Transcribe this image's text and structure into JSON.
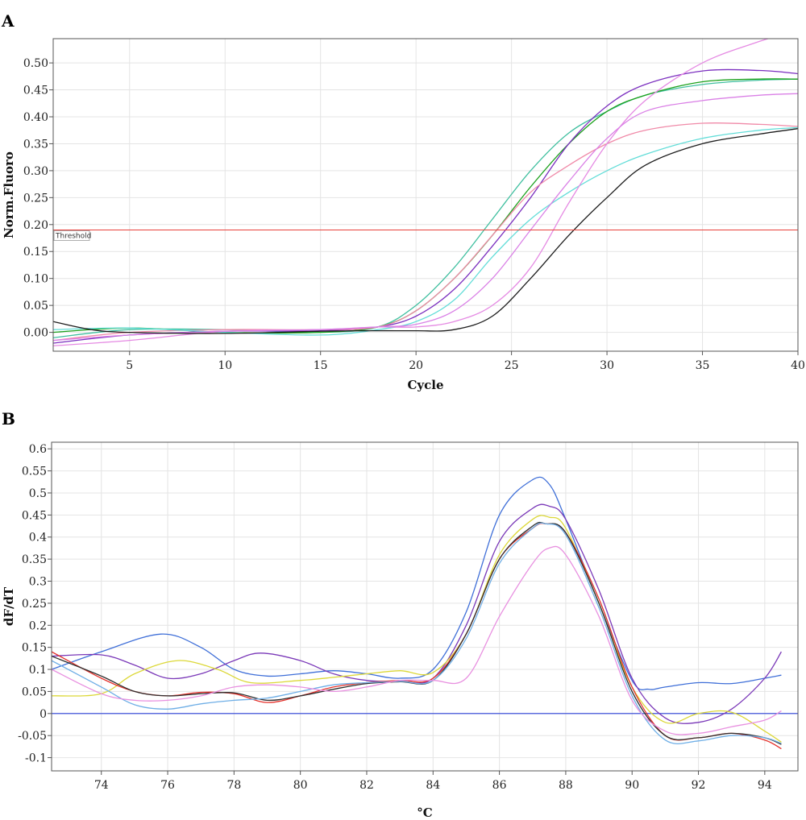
{
  "chart_data": [
    {
      "panel": "A",
      "type": "line",
      "xlabel": "Cycle",
      "ylabel": "Norm.Fluoro",
      "xlim": [
        1,
        40
      ],
      "ylim": [
        -0.035,
        0.545
      ],
      "xticks": [
        5,
        10,
        15,
        20,
        25,
        30,
        35,
        40
      ],
      "yticks": [
        0.0,
        0.05,
        0.1,
        0.15,
        0.2,
        0.25,
        0.3,
        0.35,
        0.4,
        0.45,
        0.5
      ],
      "ytick_labels": [
        "0.00",
        "0.05",
        "0.10",
        "0.15",
        "0.20",
        "0.25",
        "0.30",
        "0.35",
        "0.40",
        "0.45",
        "0.50"
      ],
      "grid": true,
      "threshold": {
        "label": "Threshold",
        "y": 0.19,
        "color": "#e8403a"
      },
      "series": [
        {
          "color": "#3fbf9f",
          "x": [
            1,
            5,
            10,
            15,
            18,
            20,
            22,
            24,
            26,
            28,
            30,
            32,
            35,
            38,
            40
          ],
          "values": [
            -0.01,
            0.005,
            0.005,
            0.0,
            0.01,
            0.05,
            0.12,
            0.21,
            0.3,
            0.37,
            0.41,
            0.44,
            0.46,
            0.468,
            0.47
          ]
        },
        {
          "color": "#1aa01a",
          "x": [
            1,
            5,
            10,
            15,
            18,
            20,
            22,
            24,
            26,
            28,
            30,
            32,
            35,
            38,
            40
          ],
          "values": [
            0.0,
            0.008,
            0.0,
            0.0,
            0.01,
            0.04,
            0.1,
            0.18,
            0.27,
            0.35,
            0.41,
            0.44,
            0.465,
            0.47,
            0.47
          ]
        },
        {
          "color": "#7b2fbf",
          "x": [
            1,
            5,
            10,
            15,
            18,
            20,
            22,
            24,
            26,
            28,
            30,
            32,
            35,
            38,
            40
          ],
          "values": [
            -0.02,
            -0.005,
            0.002,
            0.003,
            0.01,
            0.03,
            0.08,
            0.16,
            0.25,
            0.35,
            0.42,
            0.46,
            0.485,
            0.486,
            0.48
          ]
        },
        {
          "color": "#f08aa8",
          "x": [
            1,
            5,
            10,
            15,
            18,
            20,
            22,
            24,
            26,
            28,
            30,
            32,
            35,
            38,
            40
          ],
          "values": [
            -0.015,
            0.0,
            0.005,
            0.005,
            0.01,
            0.04,
            0.1,
            0.18,
            0.26,
            0.31,
            0.35,
            0.375,
            0.388,
            0.386,
            0.382
          ]
        },
        {
          "color": "#62ddd8",
          "x": [
            1,
            5,
            10,
            15,
            18,
            20,
            22,
            24,
            26,
            28,
            30,
            32,
            35,
            38,
            40
          ],
          "values": [
            0.005,
            0.008,
            0.0,
            -0.005,
            0.005,
            0.02,
            0.06,
            0.14,
            0.21,
            0.26,
            0.3,
            0.33,
            0.36,
            0.375,
            0.38
          ]
        },
        {
          "color": "#e58ae3",
          "x": [
            1,
            5,
            10,
            15,
            18,
            20,
            22,
            24,
            26,
            28,
            30,
            32,
            35,
            38,
            39,
            40
          ],
          "values": [
            -0.025,
            -0.015,
            0.002,
            0.005,
            0.01,
            0.01,
            0.02,
            0.05,
            0.12,
            0.24,
            0.35,
            0.43,
            0.5,
            0.54,
            0.55,
            0.56
          ]
        },
        {
          "color": "#da80e6",
          "x": [
            1,
            5,
            10,
            15,
            18,
            20,
            22,
            24,
            26,
            28,
            30,
            32,
            35,
            38,
            40
          ],
          "values": [
            -0.015,
            -0.005,
            0.002,
            0.005,
            0.01,
            0.015,
            0.04,
            0.1,
            0.19,
            0.28,
            0.36,
            0.41,
            0.43,
            0.44,
            0.443
          ]
        },
        {
          "color": "#1c1c1c",
          "x": [
            1,
            3,
            5,
            10,
            15,
            18,
            20,
            22,
            24,
            26,
            28,
            30,
            32,
            35,
            38,
            40
          ],
          "values": [
            0.02,
            0.005,
            0.0,
            -0.002,
            0.002,
            0.003,
            0.003,
            0.005,
            0.03,
            0.1,
            0.18,
            0.25,
            0.31,
            0.35,
            0.368,
            0.378
          ]
        }
      ]
    },
    {
      "panel": "B",
      "type": "line",
      "xlabel": "°C",
      "ylabel": "dF/dT",
      "xlim": [
        72.5,
        95.0
      ],
      "ylim": [
        -0.13,
        0.615
      ],
      "xticks": [
        74,
        76,
        78,
        80,
        82,
        84,
        86,
        88,
        90,
        92,
        94
      ],
      "yticks": [
        -0.1,
        -0.05,
        0,
        0.05,
        0.1,
        0.15,
        0.2,
        0.25,
        0.3,
        0.35,
        0.4,
        0.45,
        0.5,
        0.55,
        0.6
      ],
      "ytick_labels": [
        "-0.1",
        "-0.05",
        "0",
        "0.05",
        "0.1",
        "0.15",
        "0.2",
        "0.25",
        "0.3",
        "0.35",
        "0.4",
        "0.45",
        "0.5",
        "0.55",
        "0.6"
      ],
      "grid": true,
      "baseline": {
        "y": 0,
        "color": "#2a3fd8"
      },
      "series": [
        {
          "color": "#3f6fd8",
          "x": [
            72.5,
            74,
            75.8,
            77,
            78,
            79,
            80,
            81,
            82,
            83,
            84,
            85,
            86,
            87,
            87.5,
            88,
            89,
            90,
            90.5,
            91,
            92,
            93,
            94,
            94.5
          ],
          "values": [
            0.1,
            0.14,
            0.18,
            0.15,
            0.1,
            0.085,
            0.09,
            0.097,
            0.09,
            0.08,
            0.1,
            0.23,
            0.45,
            0.53,
            0.52,
            0.44,
            0.25,
            0.075,
            0.055,
            0.06,
            0.07,
            0.068,
            0.08,
            0.087
          ]
        },
        {
          "color": "#7a38b8",
          "x": [
            72.5,
            74,
            75,
            76,
            77,
            78,
            78.8,
            80,
            81,
            82,
            83,
            84,
            85,
            86,
            87,
            87.5,
            88,
            89,
            90,
            91,
            92,
            93,
            94,
            94.5
          ],
          "values": [
            0.13,
            0.133,
            0.11,
            0.08,
            0.09,
            0.12,
            0.137,
            0.12,
            0.09,
            0.075,
            0.073,
            0.08,
            0.2,
            0.39,
            0.465,
            0.47,
            0.44,
            0.28,
            0.08,
            -0.01,
            -0.02,
            0.01,
            0.08,
            0.14
          ]
        },
        {
          "color": "#dcd838",
          "x": [
            72.5,
            74,
            75,
            76.3,
            77.5,
            78.5,
            80,
            81,
            82,
            83,
            84,
            85,
            86,
            87,
            87.5,
            88,
            89,
            90,
            91,
            92,
            93,
            94,
            94.5
          ],
          "values": [
            0.04,
            0.045,
            0.09,
            0.12,
            0.1,
            0.07,
            0.075,
            0.082,
            0.09,
            0.097,
            0.093,
            0.18,
            0.36,
            0.44,
            0.445,
            0.42,
            0.25,
            0.06,
            -0.02,
            0.0,
            0.003,
            -0.04,
            -0.065
          ]
        },
        {
          "color": "#e5302a",
          "x": [
            72.5,
            74,
            75,
            76,
            77,
            78,
            79,
            80,
            81,
            82,
            83,
            84,
            85,
            86,
            87,
            87.4,
            88,
            89,
            90,
            91,
            92,
            93,
            94,
            94.5
          ],
          "values": [
            0.14,
            0.08,
            0.05,
            0.04,
            0.048,
            0.045,
            0.025,
            0.04,
            0.06,
            0.07,
            0.075,
            0.08,
            0.18,
            0.35,
            0.42,
            0.43,
            0.41,
            0.26,
            0.06,
            -0.05,
            -0.055,
            -0.045,
            -0.06,
            -0.08
          ]
        },
        {
          "color": "#2f2f2f",
          "x": [
            72.5,
            74,
            75,
            76,
            77,
            78,
            79,
            80,
            81,
            82,
            83,
            84,
            85,
            86,
            87,
            87.4,
            88,
            89,
            90,
            91,
            92,
            93,
            94,
            94.5
          ],
          "values": [
            0.13,
            0.085,
            0.05,
            0.04,
            0.045,
            0.047,
            0.03,
            0.04,
            0.055,
            0.068,
            0.072,
            0.075,
            0.18,
            0.35,
            0.425,
            0.43,
            0.41,
            0.25,
            0.05,
            -0.05,
            -0.055,
            -0.045,
            -0.055,
            -0.07
          ]
        },
        {
          "color": "#6eaee6",
          "x": [
            72.5,
            74,
            75,
            76,
            77,
            78,
            79,
            80,
            81,
            82,
            83,
            84,
            85,
            86,
            87,
            87.4,
            88,
            89,
            90,
            91,
            92,
            93,
            94,
            94.5
          ],
          "values": [
            0.12,
            0.06,
            0.02,
            0.01,
            0.022,
            0.03,
            0.035,
            0.05,
            0.065,
            0.07,
            0.073,
            0.075,
            0.17,
            0.34,
            0.42,
            0.43,
            0.405,
            0.24,
            0.04,
            -0.06,
            -0.062,
            -0.05,
            -0.055,
            -0.068
          ]
        },
        {
          "color": "#e890e0",
          "x": [
            72.5,
            74,
            75,
            76,
            77,
            78,
            79,
            80,
            81,
            82,
            83,
            84,
            85,
            86,
            87,
            87.5,
            88,
            89,
            90,
            91,
            92,
            93,
            94,
            94.5
          ],
          "values": [
            0.1,
            0.045,
            0.03,
            0.03,
            0.04,
            0.06,
            0.065,
            0.06,
            0.05,
            0.06,
            0.075,
            0.075,
            0.08,
            0.22,
            0.34,
            0.375,
            0.36,
            0.22,
            0.03,
            -0.04,
            -0.045,
            -0.03,
            -0.015,
            0.006
          ]
        }
      ]
    }
  ]
}
